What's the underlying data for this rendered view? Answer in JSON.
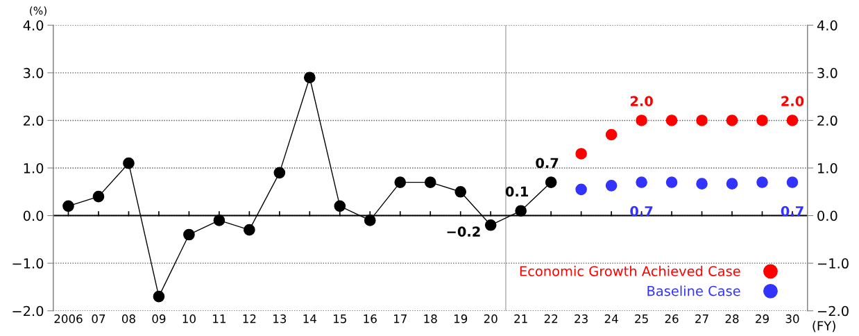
{
  "chart_data": {
    "type": "line",
    "x": [
      2006,
      2007,
      2008,
      2009,
      2010,
      2011,
      2012,
      2013,
      2014,
      2015,
      2016,
      2017,
      2018,
      2019,
      2020,
      2021,
      2022
    ],
    "series": [
      {
        "color": "#000000",
        "values": [
          0.2,
          0.4,
          1.1,
          -1.7,
          -0.4,
          -0.1,
          -0.3,
          0.9,
          2.9,
          0.2,
          -0.1,
          0.7,
          0.7,
          0.5,
          -0.2,
          0.1,
          0.7
        ],
        "value_labels": [
          null,
          null,
          null,
          null,
          null,
          null,
          null,
          null,
          null,
          null,
          null,
          null,
          null,
          null,
          "−0.2",
          "0.1",
          "0.7"
        ]
      },
      {
        "name": "Economic Growth Achieved Case",
        "type": "scatter",
        "color": "#ff0000",
        "x": [
          2023,
          2024,
          2025,
          2026,
          2027,
          2028,
          2029,
          2030
        ],
        "values": [
          1.3,
          1.7,
          2.0,
          2.0,
          2.0,
          2.0,
          2.0,
          2.0
        ],
        "value_labels": [
          null,
          null,
          "2.0",
          null,
          null,
          null,
          null,
          "2.0"
        ]
      },
      {
        "name": "Baseline Case",
        "type": "scatter",
        "color": "#3333ff",
        "x": [
          2023,
          2024,
          2025,
          2026,
          2027,
          2028,
          2029,
          2030
        ],
        "values": [
          0.55,
          0.63,
          0.7,
          0.7,
          0.67,
          0.67,
          0.7,
          0.7
        ],
        "value_labels": [
          null,
          null,
          "0.7",
          null,
          null,
          null,
          null,
          "0.7"
        ]
      }
    ],
    "xlabel": "(FY)",
    "ylabel": "(%)",
    "xlim": [
      2005.5,
      2030.5
    ],
    "xticks": [
      {
        "value": 2006,
        "label": "2006"
      },
      {
        "value": 2007,
        "label": "07"
      },
      {
        "value": 2008,
        "label": "08"
      },
      {
        "value": 2009,
        "label": "09"
      },
      {
        "value": 2010,
        "label": "10"
      },
      {
        "value": 2011,
        "label": "11"
      },
      {
        "value": 2012,
        "label": "12"
      },
      {
        "value": 2013,
        "label": "13"
      },
      {
        "value": 2014,
        "label": "14"
      },
      {
        "value": 2015,
        "label": "15"
      },
      {
        "value": 2016,
        "label": "16"
      },
      {
        "value": 2017,
        "label": "17"
      },
      {
        "value": 2018,
        "label": "18"
      },
      {
        "value": 2019,
        "label": "19"
      },
      {
        "value": 2020,
        "label": "20"
      },
      {
        "value": 2021,
        "label": "21"
      },
      {
        "value": 2022,
        "label": "22"
      },
      {
        "value": 2023,
        "label": "23"
      },
      {
        "value": 2024,
        "label": "24"
      },
      {
        "value": 2025,
        "label": "25"
      },
      {
        "value": 2026,
        "label": "26"
      },
      {
        "value": 2027,
        "label": "27"
      },
      {
        "value": 2028,
        "label": "28"
      },
      {
        "value": 2029,
        "label": "29"
      },
      {
        "value": 2030,
        "label": "30"
      }
    ],
    "ylim": [
      -2,
      4
    ],
    "yticks": [
      {
        "value": -2,
        "label": "−2.0"
      },
      {
        "value": -1,
        "label": "−1.0"
      },
      {
        "value": 0,
        "label": "0.0"
      },
      {
        "value": 1,
        "label": "1.0"
      },
      {
        "value": 2,
        "label": "2.0"
      },
      {
        "value": 3,
        "label": "3.0"
      },
      {
        "value": 4,
        "label": "4.0"
      }
    ],
    "y2lim": [
      -2,
      4
    ],
    "y2ticks": [
      {
        "value": -2,
        "label": "−2.0"
      },
      {
        "value": -1,
        "label": "−1.0"
      },
      {
        "value": 0,
        "label": "0.0"
      },
      {
        "value": 1,
        "label": "1.0"
      },
      {
        "value": 2,
        "label": "2.0"
      },
      {
        "value": 3,
        "label": "3.0"
      },
      {
        "value": 4,
        "label": "4.0"
      }
    ],
    "ref_lines": [
      {
        "axis": "x",
        "value": 2020.5,
        "color": "#aaaaaa"
      },
      {
        "axis": "y",
        "value": 0,
        "color": "#000000"
      }
    ],
    "grid": "y",
    "legend": "bottom right",
    "marker": "circle"
  }
}
